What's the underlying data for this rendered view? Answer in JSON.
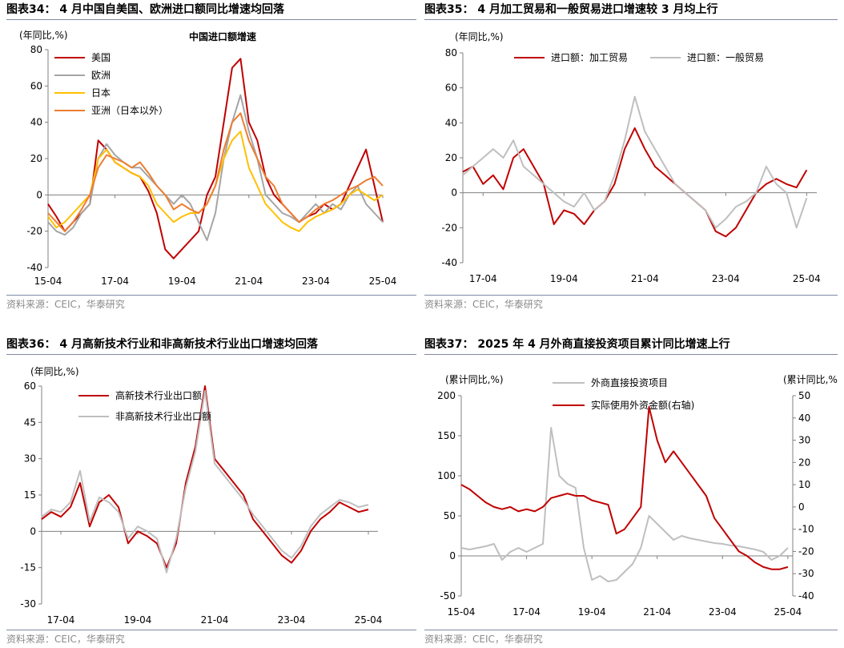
{
  "panels": [
    {
      "title": "图表34： 4 月中国自美国、欧洲进口额同比增速均回落",
      "source": "资料来源：CEIC，华泰研究"
    },
    {
      "title": "图表35： 4 月加工贸易和一般贸易进口增速较 3 月均上行",
      "source": "资料来源：CEIC，华泰研究"
    },
    {
      "title": "图表36： 4 月高新技术行业和非高新技术行业出口增速均回落",
      "source": "资料来源：CEIC，华泰研究"
    },
    {
      "title": "图表37： 2025 年 4 月外商直接投资项目累计同比增速上行",
      "source": "资料来源：CEIC，华泰研究"
    }
  ],
  "chart_data": [
    {
      "type": "line",
      "title": "中国进口额增速",
      "ylabel": "(年同比,%)",
      "ylim": [
        -40,
        80
      ],
      "yticks": [
        -40,
        -20,
        0,
        20,
        40,
        60,
        80
      ],
      "xlim": [
        2015.25,
        2025.25
      ],
      "xticks": [
        2015.25,
        2017.25,
        2019.25,
        2021.25,
        2023.25,
        2025.25
      ],
      "xticklabels": [
        "15-04",
        "17-04",
        "19-04",
        "21-04",
        "23-04",
        "25-04"
      ],
      "legend": "top-left",
      "series": [
        {
          "name": "美国",
          "color": "#c00000",
          "x": [
            2015.25,
            2015.5,
            2015.75,
            2016.0,
            2016.25,
            2016.5,
            2016.75,
            2017.0,
            2017.25,
            2017.5,
            2017.75,
            2018.0,
            2018.25,
            2018.5,
            2018.75,
            2019.0,
            2019.25,
            2019.5,
            2019.75,
            2020.0,
            2020.25,
            2020.5,
            2020.75,
            2021.0,
            2021.25,
            2021.5,
            2021.75,
            2022.0,
            2022.25,
            2022.5,
            2022.75,
            2023.0,
            2023.25,
            2023.5,
            2023.75,
            2024.0,
            2024.25,
            2024.5,
            2024.75,
            2025.0,
            2025.25
          ],
          "y": [
            -5,
            -12,
            -20,
            -15,
            -10,
            -5,
            30,
            25,
            18,
            15,
            12,
            10,
            2,
            -10,
            -30,
            -35,
            -30,
            -25,
            -20,
            0,
            10,
            40,
            70,
            75,
            40,
            30,
            10,
            0,
            -5,
            -10,
            -15,
            -12,
            -10,
            -5,
            -8,
            -5,
            5,
            15,
            25,
            5,
            -15
          ]
        },
        {
          "name": "欧洲",
          "color": "#a5a5a5",
          "x": [
            2015.25,
            2015.5,
            2015.75,
            2016.0,
            2016.25,
            2016.5,
            2016.75,
            2017.0,
            2017.25,
            2017.5,
            2017.75,
            2018.0,
            2018.25,
            2018.5,
            2018.75,
            2019.0,
            2019.25,
            2019.5,
            2019.75,
            2020.0,
            2020.25,
            2020.5,
            2020.75,
            2021.0,
            2021.25,
            2021.5,
            2021.75,
            2022.0,
            2022.25,
            2022.5,
            2022.75,
            2023.0,
            2023.25,
            2023.5,
            2023.75,
            2024.0,
            2024.25,
            2024.5,
            2024.75,
            2025.0,
            2025.25
          ],
          "y": [
            -15,
            -20,
            -22,
            -18,
            -10,
            -5,
            20,
            28,
            22,
            18,
            15,
            15,
            10,
            5,
            0,
            -5,
            0,
            -5,
            -15,
            -25,
            -10,
            20,
            40,
            55,
            35,
            20,
            0,
            -5,
            -10,
            -12,
            -15,
            -10,
            -5,
            -10,
            -5,
            -8,
            0,
            5,
            -5,
            -10,
            -15
          ]
        },
        {
          "name": "日本",
          "color": "#ffc000",
          "x": [
            2015.25,
            2015.5,
            2015.75,
            2016.0,
            2016.25,
            2016.5,
            2016.75,
            2017.0,
            2017.25,
            2017.5,
            2017.75,
            2018.0,
            2018.25,
            2018.5,
            2018.75,
            2019.0,
            2019.25,
            2019.5,
            2019.75,
            2020.0,
            2020.25,
            2020.5,
            2020.75,
            2021.0,
            2021.25,
            2021.5,
            2021.75,
            2022.0,
            2022.25,
            2022.5,
            2022.75,
            2023.0,
            2023.25,
            2023.5,
            2023.75,
            2024.0,
            2024.25,
            2024.5,
            2024.75,
            2025.0,
            2025.25
          ],
          "y": [
            -12,
            -18,
            -15,
            -10,
            -5,
            0,
            20,
            25,
            18,
            15,
            12,
            10,
            5,
            -5,
            -10,
            -15,
            -12,
            -10,
            -10,
            -5,
            5,
            20,
            30,
            35,
            15,
            5,
            -5,
            -10,
            -15,
            -18,
            -20,
            -15,
            -12,
            -10,
            -8,
            -5,
            0,
            3,
            0,
            -3,
            0
          ]
        },
        {
          "name": "亚洲（日本以外）",
          "color": "#ed7d31",
          "x": [
            2015.25,
            2015.5,
            2015.75,
            2016.0,
            2016.25,
            2016.5,
            2016.75,
            2017.0,
            2017.25,
            2017.5,
            2017.75,
            2018.0,
            2018.25,
            2018.5,
            2018.75,
            2019.0,
            2019.25,
            2019.5,
            2019.75,
            2020.0,
            2020.25,
            2020.5,
            2020.75,
            2021.0,
            2021.25,
            2021.5,
            2021.75,
            2022.0,
            2022.25,
            2022.5,
            2022.75,
            2023.0,
            2023.25,
            2023.5,
            2023.75,
            2024.0,
            2024.25,
            2024.5,
            2024.75,
            2025.0,
            2025.25
          ],
          "y": [
            -10,
            -15,
            -20,
            -15,
            -8,
            0,
            15,
            22,
            20,
            18,
            15,
            18,
            12,
            5,
            0,
            -8,
            -5,
            -8,
            -10,
            -5,
            5,
            25,
            40,
            45,
            30,
            20,
            10,
            5,
            -5,
            -10,
            -15,
            -12,
            -8,
            -5,
            -3,
            0,
            3,
            5,
            8,
            10,
            5
          ]
        }
      ]
    },
    {
      "type": "line",
      "ylabel": "(年同比,%)",
      "ylim": [
        -40,
        80
      ],
      "yticks": [
        -40,
        -20,
        0,
        20,
        40,
        60,
        80
      ],
      "xlim": [
        2016.75,
        2025.5
      ],
      "xticks": [
        2017.25,
        2019.25,
        2021.25,
        2023.25,
        2025.25
      ],
      "xticklabels": [
        "17-04",
        "19-04",
        "21-04",
        "23-04",
        "25-04"
      ],
      "legend": "top",
      "series": [
        {
          "name": "进口额：加工贸易",
          "color": "#c00000",
          "x": [
            2016.75,
            2017.0,
            2017.25,
            2017.5,
            2017.75,
            2018.0,
            2018.25,
            2018.5,
            2018.75,
            2019.0,
            2019.25,
            2019.5,
            2019.75,
            2020.0,
            2020.25,
            2020.5,
            2020.75,
            2021.0,
            2021.25,
            2021.5,
            2021.75,
            2022.0,
            2022.25,
            2022.5,
            2022.75,
            2023.0,
            2023.25,
            2023.5,
            2023.75,
            2024.0,
            2024.25,
            2024.5,
            2024.75,
            2025.0,
            2025.25
          ],
          "y": [
            12,
            15,
            5,
            10,
            2,
            20,
            25,
            15,
            5,
            -18,
            -10,
            -12,
            -18,
            -10,
            -5,
            5,
            25,
            37,
            25,
            15,
            10,
            5,
            0,
            -5,
            -10,
            -22,
            -25,
            -20,
            -10,
            0,
            5,
            8,
            5,
            3,
            13
          ]
        },
        {
          "name": "进口额：一般贸易",
          "color": "#bfbfbf",
          "x": [
            2016.75,
            2017.0,
            2017.25,
            2017.5,
            2017.75,
            2018.0,
            2018.25,
            2018.5,
            2018.75,
            2019.0,
            2019.25,
            2019.5,
            2019.75,
            2020.0,
            2020.25,
            2020.5,
            2020.75,
            2021.0,
            2021.25,
            2021.5,
            2021.75,
            2022.0,
            2022.25,
            2022.5,
            2022.75,
            2023.0,
            2023.25,
            2023.5,
            2023.75,
            2024.0,
            2024.25,
            2024.5,
            2024.75,
            2025.0,
            2025.25
          ],
          "y": [
            10,
            15,
            20,
            25,
            20,
            30,
            15,
            10,
            5,
            0,
            -5,
            -8,
            0,
            -10,
            -5,
            10,
            30,
            55,
            35,
            25,
            15,
            5,
            0,
            -5,
            -10,
            -20,
            -15,
            -8,
            -5,
            0,
            15,
            5,
            0,
            -20,
            -3
          ]
        }
      ]
    },
    {
      "type": "line",
      "ylabel": "(年同比,%)",
      "ylim": [
        -30,
        60
      ],
      "yticks": [
        -30,
        -15,
        0,
        15,
        30,
        45,
        60
      ],
      "xlim": [
        2016.75,
        2025.5
      ],
      "xticks": [
        2017.25,
        2019.25,
        2021.25,
        2023.25,
        2025.25
      ],
      "xticklabels": [
        "17-04",
        "19-04",
        "21-04",
        "23-04",
        "25-04"
      ],
      "legend": "top-left",
      "series": [
        {
          "name": "高新技术行业出口额",
          "color": "#c00000",
          "x": [
            2016.75,
            2017.0,
            2017.25,
            2017.5,
            2017.75,
            2018.0,
            2018.25,
            2018.5,
            2018.75,
            2019.0,
            2019.25,
            2019.5,
            2019.75,
            2020.0,
            2020.25,
            2020.5,
            2020.75,
            2021.0,
            2021.25,
            2021.5,
            2021.75,
            2022.0,
            2022.25,
            2022.5,
            2022.75,
            2023.0,
            2023.25,
            2023.5,
            2023.75,
            2024.0,
            2024.25,
            2024.5,
            2024.75,
            2025.0,
            2025.25
          ],
          "y": [
            5,
            8,
            6,
            10,
            20,
            2,
            12,
            15,
            10,
            -5,
            0,
            -2,
            -5,
            -15,
            -5,
            20,
            35,
            60,
            30,
            25,
            20,
            15,
            5,
            0,
            -5,
            -10,
            -13,
            -8,
            0,
            5,
            8,
            12,
            10,
            8,
            9
          ]
        },
        {
          "name": "非高新技术行业出口额",
          "color": "#bfbfbf",
          "x": [
            2016.75,
            2017.0,
            2017.25,
            2017.5,
            2017.75,
            2018.0,
            2018.25,
            2018.5,
            2018.75,
            2019.0,
            2019.25,
            2019.5,
            2019.75,
            2020.0,
            2020.25,
            2020.5,
            2020.75,
            2021.0,
            2021.25,
            2021.5,
            2021.75,
            2022.0,
            2022.25,
            2022.5,
            2022.75,
            2023.0,
            2023.25,
            2023.5,
            2023.75,
            2024.0,
            2024.25,
            2024.5,
            2024.75,
            2025.0,
            2025.25
          ],
          "y": [
            6,
            9,
            8,
            12,
            25,
            4,
            14,
            12,
            8,
            -3,
            2,
            0,
            -3,
            -17,
            -3,
            18,
            33,
            58,
            28,
            23,
            18,
            13,
            7,
            2,
            -3,
            -8,
            -11,
            -6,
            2,
            7,
            10,
            13,
            12,
            10,
            11
          ]
        }
      ]
    },
    {
      "type": "line",
      "ylabel": "(累计同比,%)",
      "ylabel_right": "(累计同比,%)",
      "ylim": [
        -50,
        200
      ],
      "yticks": [
        -50,
        0,
        50,
        100,
        150,
        200
      ],
      "ylim_right": [
        -40,
        50
      ],
      "yticks_right": [
        -40,
        -30,
        -20,
        -10,
        0,
        10,
        20,
        30,
        40,
        50
      ],
      "xlim": [
        2015.25,
        2025.4
      ],
      "xticks": [
        2015.25,
        2017.25,
        2019.25,
        2021.25,
        2023.25,
        2025.25
      ],
      "xticklabels": [
        "15-04",
        "17-04",
        "19-04",
        "21-04",
        "23-04",
        "25-04"
      ],
      "legend": "top",
      "series": [
        {
          "name": "外商直接投资项目",
          "color": "#bfbfbf",
          "axis": "left",
          "x": [
            2015.25,
            2015.5,
            2015.75,
            2016.0,
            2016.25,
            2016.5,
            2016.75,
            2017.0,
            2017.25,
            2017.5,
            2017.75,
            2018.0,
            2018.25,
            2018.5,
            2018.75,
            2019.0,
            2019.25,
            2019.5,
            2019.75,
            2020.0,
            2020.25,
            2020.5,
            2020.75,
            2021.0,
            2021.25,
            2021.5,
            2021.75,
            2022.0,
            2022.25,
            2022.5,
            2022.75,
            2023.0,
            2023.25,
            2023.5,
            2023.75,
            2024.0,
            2024.25,
            2024.5,
            2024.75,
            2025.0,
            2025.25
          ],
          "y": [
            10,
            8,
            10,
            12,
            15,
            -5,
            5,
            10,
            5,
            10,
            15,
            160,
            100,
            90,
            85,
            10,
            -30,
            -25,
            -32,
            -30,
            -20,
            -10,
            10,
            50,
            40,
            30,
            20,
            25,
            22,
            20,
            18,
            16,
            15,
            13,
            12,
            10,
            8,
            5,
            -5,
            0,
            10
          ]
        },
        {
          "name": "实际使用外资金额(右轴)",
          "color": "#c00000",
          "axis": "right",
          "x": [
            2015.25,
            2015.5,
            2015.75,
            2016.0,
            2016.25,
            2016.5,
            2016.75,
            2017.0,
            2017.25,
            2017.5,
            2017.75,
            2018.0,
            2018.25,
            2018.5,
            2018.75,
            2019.0,
            2019.25,
            2019.5,
            2019.75,
            2020.0,
            2020.25,
            2020.5,
            2020.75,
            2021.0,
            2021.25,
            2021.5,
            2021.75,
            2022.0,
            2022.25,
            2022.5,
            2022.75,
            2023.0,
            2023.25,
            2023.5,
            2023.75,
            2024.0,
            2024.25,
            2024.5,
            2024.75,
            2025.0,
            2025.25
          ],
          "y": [
            10,
            8,
            5,
            2,
            0,
            -1,
            0,
            -2,
            -1,
            -2,
            0,
            4,
            5,
            6,
            5,
            5,
            3,
            2,
            1,
            -12,
            -10,
            -5,
            0,
            45,
            30,
            20,
            25,
            20,
            15,
            10,
            5,
            -5,
            -10,
            -15,
            -20,
            -22,
            -25,
            -27,
            -28,
            -28,
            -27
          ]
        }
      ]
    }
  ]
}
